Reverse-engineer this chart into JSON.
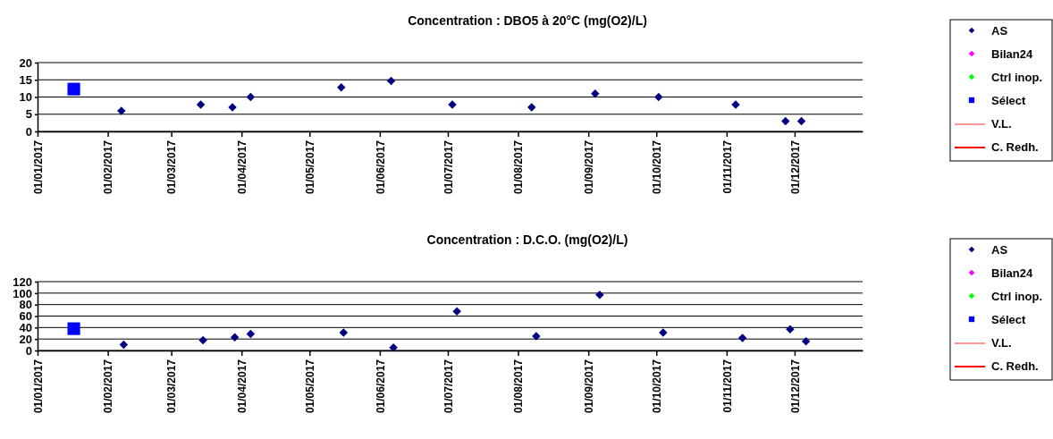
{
  "chart_data": [
    {
      "type": "scatter",
      "title": "Concentration : DBO5 à 20°C (mg(O2)/L)",
      "xlim": [
        "2017-01-01",
        "2017-12-31"
      ],
      "xticks": [
        {
          "value": "2017-01-01",
          "label": "01/01/2017"
        },
        {
          "value": "2017-02-01",
          "label": "01/02/2017"
        },
        {
          "value": "2017-03-01",
          "label": "01/03/2017"
        },
        {
          "value": "2017-04-01",
          "label": "01/04/2017"
        },
        {
          "value": "2017-05-01",
          "label": "01/05/2017"
        },
        {
          "value": "2017-06-01",
          "label": "01/06/2017"
        },
        {
          "value": "2017-07-01",
          "label": "01/07/2017"
        },
        {
          "value": "2017-08-01",
          "label": "01/08/2017"
        },
        {
          "value": "2017-09-01",
          "label": "01/09/2017"
        },
        {
          "value": "2017-10-01",
          "label": "01/10/2017"
        },
        {
          "value": "2017-11-01",
          "label": "01/11/2017"
        },
        {
          "value": "2017-12-01",
          "label": "01/12/2017"
        }
      ],
      "ylim": [
        0,
        20
      ],
      "yticks": [
        0,
        5,
        10,
        15,
        20
      ],
      "grid": "y",
      "legend": "right",
      "series": [
        {
          "name": "AS",
          "color": "#000080",
          "marker": "diamond",
          "x": [
            "2017-02-07",
            "2017-03-14",
            "2017-03-28",
            "2017-04-05",
            "2017-05-15",
            "2017-06-06",
            "2017-07-03",
            "2017-08-07",
            "2017-09-04",
            "2017-10-02",
            "2017-11-05",
            "2017-11-27",
            "2017-12-04"
          ],
          "values": [
            6,
            7.8,
            7,
            10,
            12.8,
            14.7,
            7.8,
            7,
            11,
            10,
            7.8,
            3,
            3
          ]
        },
        {
          "name": "Bilan24",
          "color": "#ff00ff",
          "marker": "diamond"
        },
        {
          "name": "Ctrl inop.",
          "color": "#00ff00",
          "marker": "diamond"
        },
        {
          "name": "Sélect",
          "color": "#0000ff",
          "marker": "square",
          "x": [
            "2017-01-17"
          ],
          "values": [
            12.3
          ]
        },
        {
          "name": "V.L.",
          "type": "line",
          "color": "#ff9999"
        },
        {
          "name": "C. Redh.",
          "type": "line",
          "color": "#ff0000"
        }
      ]
    },
    {
      "type": "scatter",
      "title": "Concentration : D.C.O. (mg(O2)/L)",
      "xlim": [
        "2017-01-01",
        "2017-12-31"
      ],
      "xticks": [
        {
          "value": "2017-01-01",
          "label": "01/01/2017"
        },
        {
          "value": "2017-02-01",
          "label": "01/02/2017"
        },
        {
          "value": "2017-03-01",
          "label": "01/03/2017"
        },
        {
          "value": "2017-04-01",
          "label": "01/04/2017"
        },
        {
          "value": "2017-05-01",
          "label": "01/05/2017"
        },
        {
          "value": "2017-06-01",
          "label": "01/06/2017"
        },
        {
          "value": "2017-07-01",
          "label": "01/07/2017"
        },
        {
          "value": "2017-08-01",
          "label": "01/08/2017"
        },
        {
          "value": "2017-09-01",
          "label": "01/09/2017"
        },
        {
          "value": "2017-10-01",
          "label": "01/10/2017"
        },
        {
          "value": "2017-11-01",
          "label": "01/11/2017"
        },
        {
          "value": "2017-12-01",
          "label": "01/12/2017"
        }
      ],
      "ylim": [
        0,
        120
      ],
      "yticks": [
        0,
        20,
        40,
        60,
        80,
        100,
        120
      ],
      "grid": "y",
      "legend": "right",
      "series": [
        {
          "name": "AS",
          "color": "#000080",
          "marker": "diamond",
          "x": [
            "2017-02-08",
            "2017-03-15",
            "2017-03-29",
            "2017-04-05",
            "2017-05-16",
            "2017-06-07",
            "2017-07-05",
            "2017-08-09",
            "2017-09-06",
            "2017-10-04",
            "2017-11-08",
            "2017-11-29",
            "2017-12-06"
          ],
          "values": [
            10,
            18,
            23,
            29,
            31,
            5,
            68,
            25,
            97,
            31,
            22,
            37,
            16
          ]
        },
        {
          "name": "Bilan24",
          "color": "#ff00ff",
          "marker": "diamond"
        },
        {
          "name": "Ctrl inop.",
          "color": "#00ff00",
          "marker": "diamond"
        },
        {
          "name": "Sélect",
          "color": "#0000ff",
          "marker": "square",
          "x": [
            "2017-01-17"
          ],
          "values": [
            38
          ]
        },
        {
          "name": "V.L.",
          "type": "line",
          "color": "#ff9999"
        },
        {
          "name": "C. Redh.",
          "type": "line",
          "color": "#ff0000"
        }
      ]
    }
  ]
}
